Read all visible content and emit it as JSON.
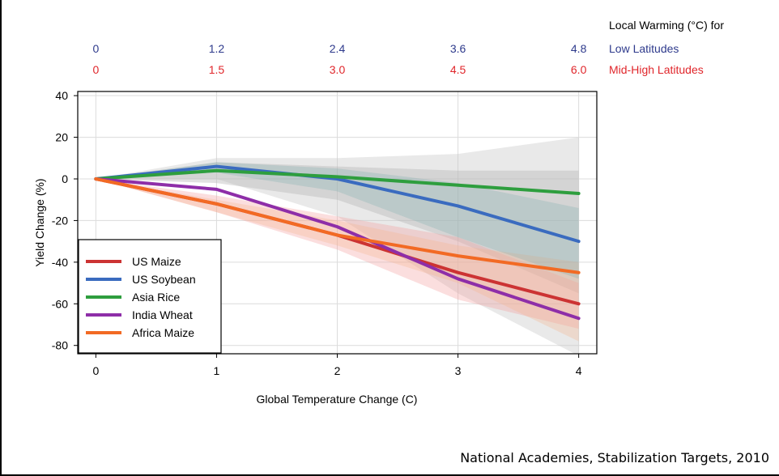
{
  "source_note": "National Academies, Stabilization Targets, 2010",
  "top_axis": {
    "title": "Local Warming (°C) for",
    "rows": [
      {
        "label": "Low Latitudes",
        "color": "#2e3a8c",
        "ticks": [
          "0",
          "1.2",
          "2.4",
          "3.6",
          "4.8"
        ]
      },
      {
        "label": "Mid-High Latitudes",
        "color": "#e0262b",
        "ticks": [
          "0",
          "1.5",
          "3.0",
          "4.5",
          "6.0"
        ]
      }
    ]
  },
  "chart_data": {
    "type": "line",
    "xlabel": "Global Temperature Change (C)",
    "ylabel": "Yield Change (%)",
    "xlim": [
      -0.15,
      4.15
    ],
    "ylim": [
      -84,
      42
    ],
    "xticks": [
      0,
      1,
      2,
      3,
      4
    ],
    "yticks": [
      40,
      20,
      0,
      -20,
      -40,
      -60,
      -80
    ],
    "grid": true,
    "legend_position": "bottom-left",
    "x": [
      0,
      1,
      2,
      3,
      4
    ],
    "series": [
      {
        "name": "US Maize",
        "color": "#cc3333",
        "values": [
          0,
          -12,
          -27,
          -45,
          -60
        ]
      },
      {
        "name": "US Soybean",
        "color": "#3a6bbf",
        "values": [
          0,
          6,
          0,
          -13,
          -30
        ]
      },
      {
        "name": "Asia Rice",
        "color": "#2e9e3e",
        "values": [
          0,
          4,
          1,
          -3,
          -7
        ]
      },
      {
        "name": "India Wheat",
        "color": "#8e2ea8",
        "values": [
          0,
          -5,
          -23,
          -48,
          -67
        ]
      },
      {
        "name": "Africa Maize",
        "color": "#f26a24",
        "values": [
          0,
          -12,
          -27,
          -37,
          -45
        ]
      }
    ],
    "bands": [
      {
        "color": "#c8c8c8",
        "opacity": 0.4,
        "upper": [
          0,
          10,
          10,
          12,
          20
        ],
        "lower": [
          0,
          0,
          -18,
          -55,
          -85
        ]
      },
      {
        "color": "#b4b4b4",
        "opacity": 0.4,
        "upper": [
          0,
          8,
          6,
          4,
          4
        ],
        "lower": [
          0,
          -2,
          -10,
          -30,
          -55
        ]
      },
      {
        "color": "#f4a0a0",
        "opacity": 0.35,
        "upper": [
          0,
          -8,
          -18,
          -28,
          -50
        ],
        "lower": [
          0,
          -16,
          -34,
          -58,
          -72
        ]
      },
      {
        "color": "#f5b48a",
        "opacity": 0.3,
        "upper": [
          0,
          -10,
          -20,
          -32,
          -40
        ],
        "lower": [
          0,
          -16,
          -32,
          -50,
          -78
        ]
      },
      {
        "color": "#6fa8a8",
        "opacity": 0.25,
        "upper": [
          0,
          8,
          5,
          -2,
          -14
        ],
        "lower": [
          0,
          3,
          -6,
          -28,
          -48
        ]
      }
    ]
  }
}
